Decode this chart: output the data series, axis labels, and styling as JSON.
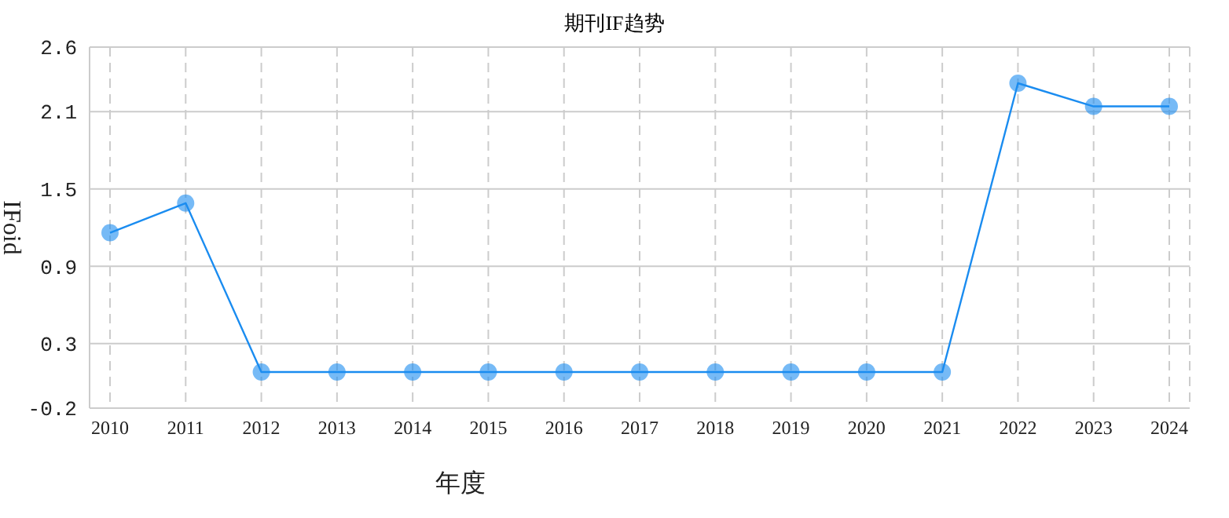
{
  "chart_data": {
    "type": "line",
    "title": "期刊IF趋势",
    "xlabel": "年度",
    "ylabel": "IFoid",
    "categories": [
      "2010",
      "2011",
      "2012",
      "2013",
      "2014",
      "2015",
      "2016",
      "2017",
      "2018",
      "2019",
      "2020",
      "2021",
      "2022",
      "2023",
      "2024"
    ],
    "series": [
      {
        "color": "#1a8cf0",
        "values": [
          1.16,
          1.39,
          0.08,
          0.08,
          0.08,
          0.08,
          0.08,
          0.08,
          0.08,
          0.08,
          0.08,
          0.08,
          2.32,
          2.14,
          2.14
        ]
      }
    ],
    "ylim": [
      -0.2,
      2.6
    ],
    "yticks": [
      -0.2,
      0.3,
      0.9,
      1.5,
      2.1,
      2.6
    ],
    "grid": true,
    "marker": "circle",
    "line_style": "solid"
  }
}
